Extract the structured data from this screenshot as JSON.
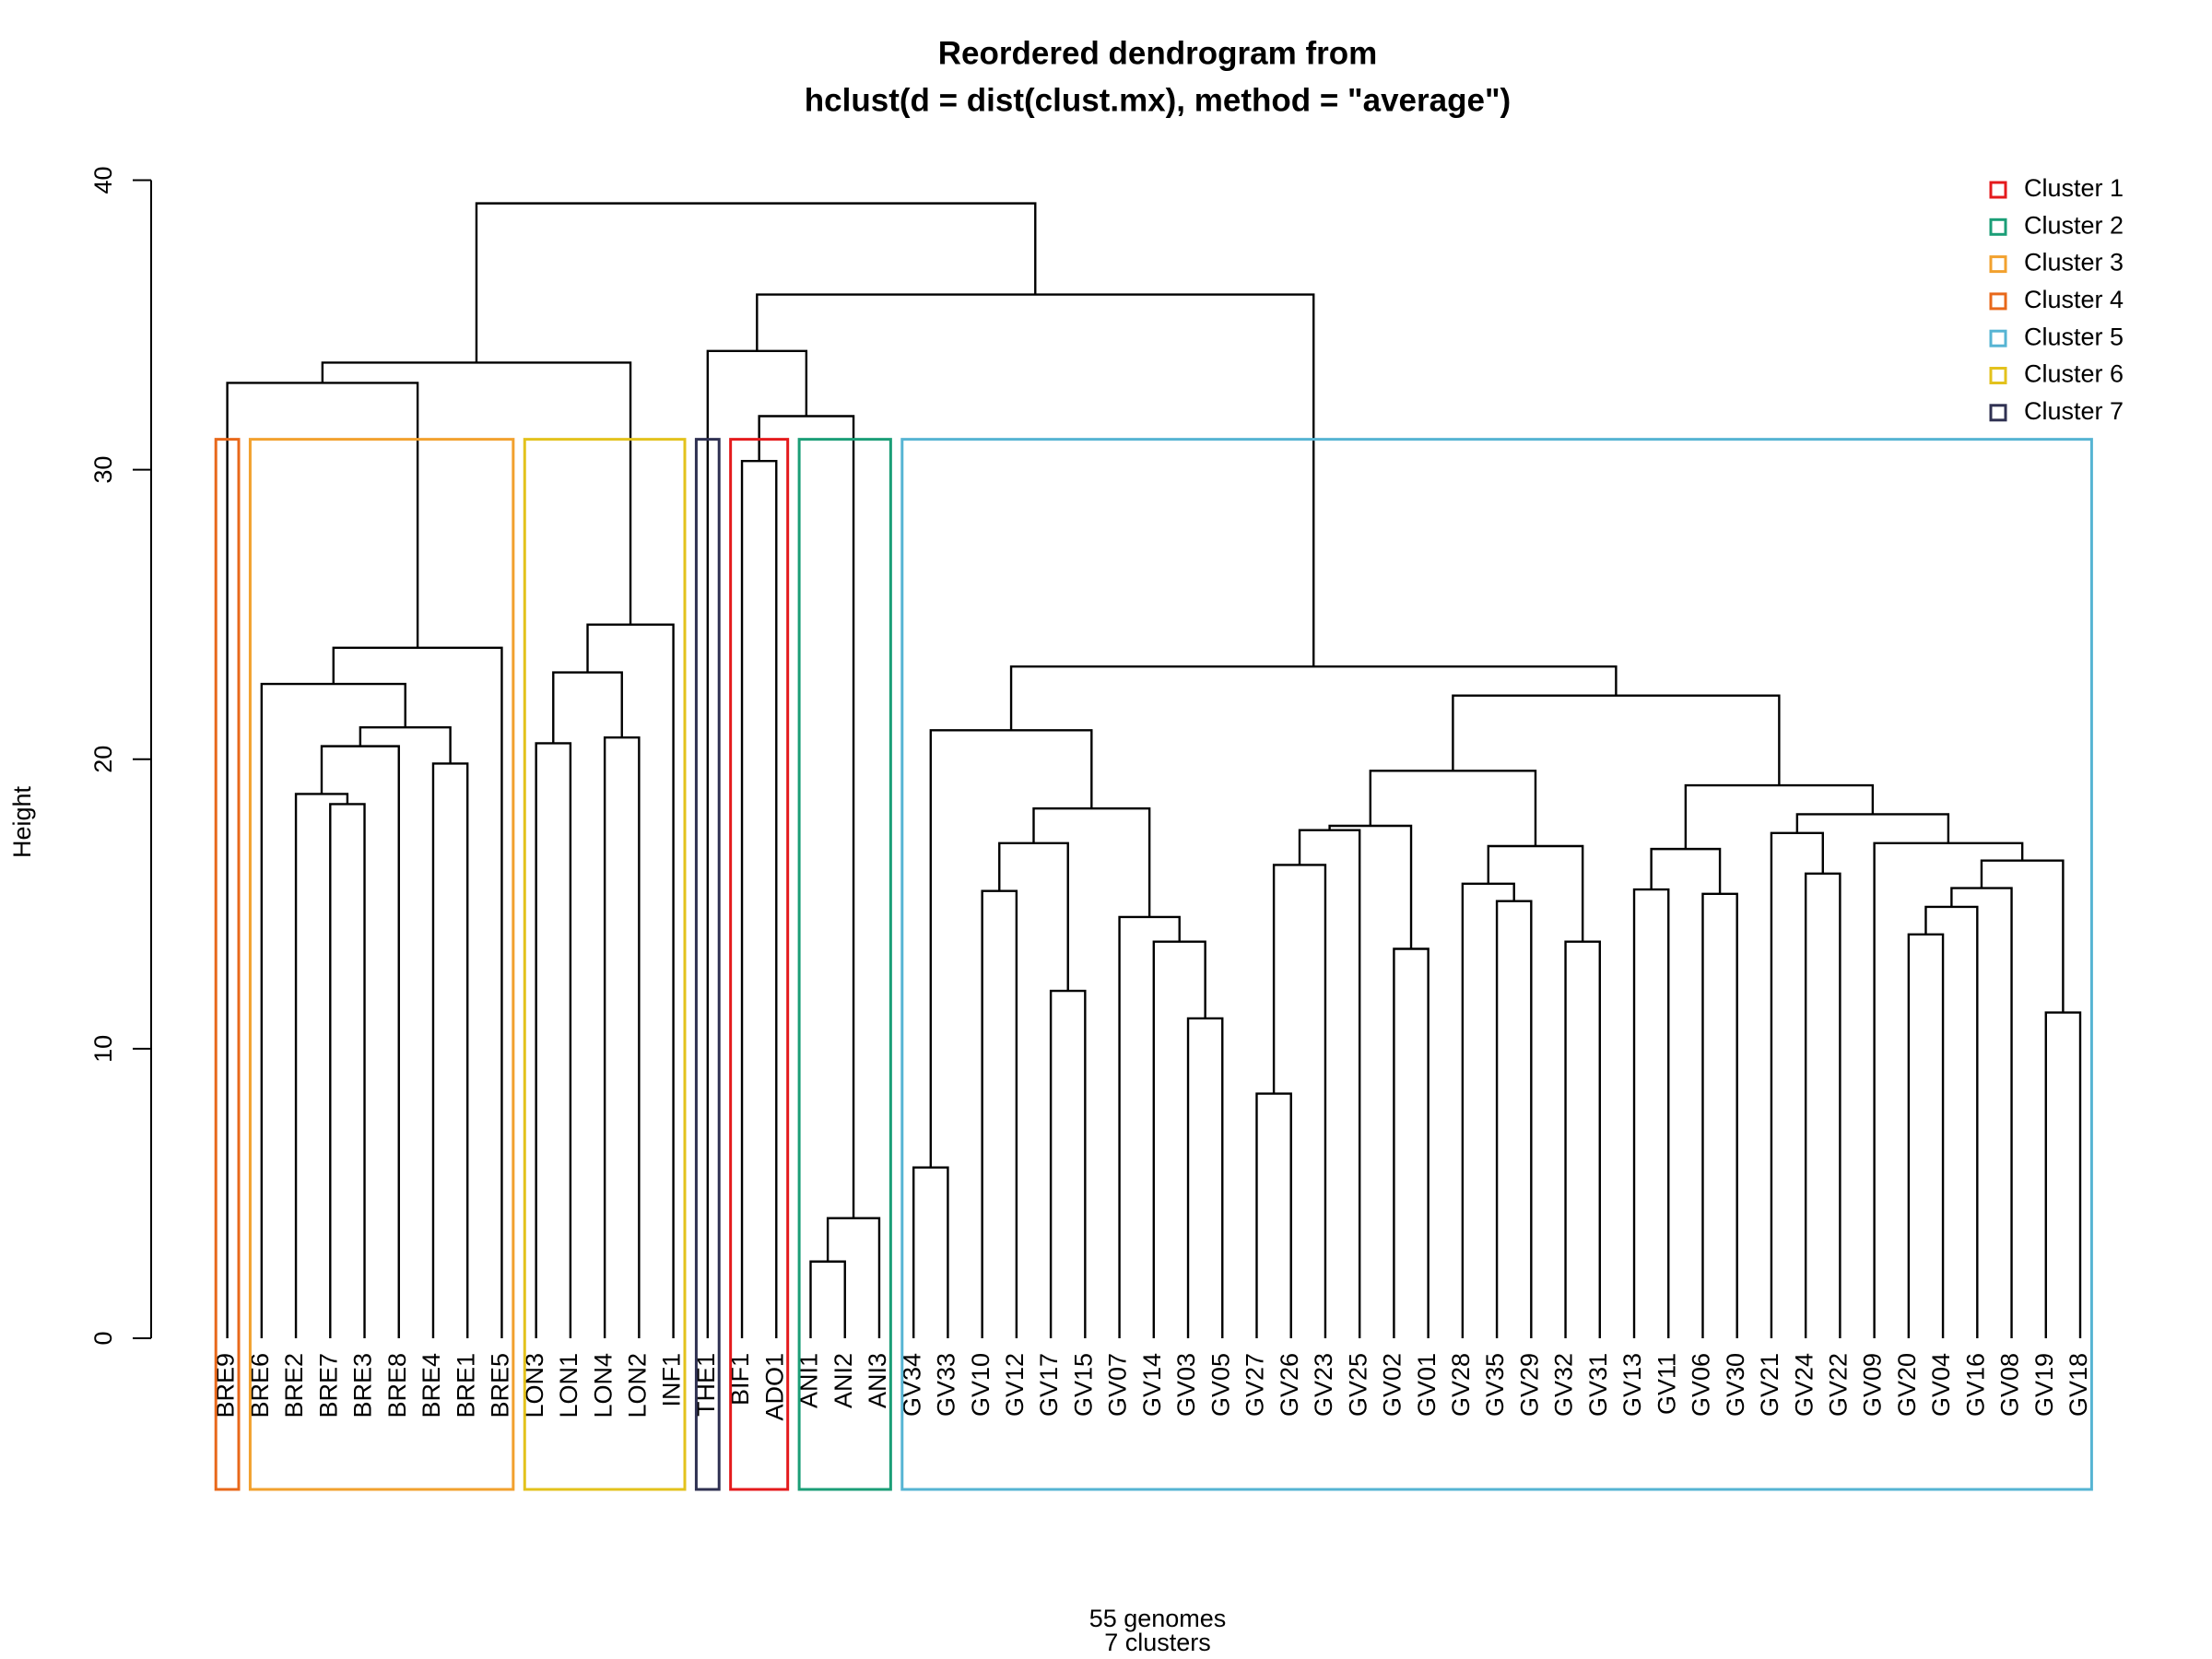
{
  "chart_data": {
    "type": "dendrogram",
    "title": [
      "Reordered dendrogram from",
      "hclust(d = dist(clust.mx), method = \"average\")"
    ],
    "ylabel": "Height",
    "xlabel": [
      "55 genomes",
      "7 clusters"
    ],
    "ylim": [
      0,
      40
    ],
    "yticks": [
      0,
      10,
      20,
      30,
      40
    ],
    "labels": [
      "BRE9",
      "BRE6",
      "BRE2",
      "BRE7",
      "BRE3",
      "BRE8",
      "BRE4",
      "BRE1",
      "BRE5",
      "LON3",
      "LON1",
      "LON4",
      "LON2",
      "INF1",
      "THE1",
      "BIF1",
      "ADO1",
      "ANI1",
      "ANI2",
      "ANI3",
      "GV34",
      "GV33",
      "GV10",
      "GV12",
      "GV17",
      "GV15",
      "GV07",
      "GV14",
      "GV03",
      "GV05",
      "GV27",
      "GV26",
      "GV23",
      "GV25",
      "GV02",
      "GV01",
      "GV28",
      "GV35",
      "GV29",
      "GV32",
      "GV31",
      "GV13",
      "GV11",
      "GV06",
      "GV30",
      "GV21",
      "GV24",
      "GV22",
      "GV09",
      "GV20",
      "GV04",
      "GV16",
      "GV08",
      "GV19",
      "GV18"
    ],
    "tree": {
      "height": 39.2,
      "children": [
        {
          "height": 33.7,
          "children": [
            {
              "height": 33.0,
              "children": [
                0,
                {
                  "height": 23.85,
                  "children": [
                    {
                      "height": 22.6,
                      "children": [
                        1,
                        {
                          "height": 21.1,
                          "children": [
                            {
                              "height": 20.45,
                              "children": [
                                {
                                  "height": 18.8,
                                  "children": [
                                    2,
                                    {
                                      "height": 18.45,
                                      "children": [
                                        3,
                                        4
                                      ]
                                    }
                                  ]
                                },
                                5
                              ]
                            },
                            {
                              "height": 19.85,
                              "children": [
                                6,
                                7
                              ]
                            }
                          ]
                        }
                      ]
                    },
                    8
                  ]
                }
              ]
            },
            {
              "height": 24.65,
              "children": [
                {
                  "height": 23.0,
                  "children": [
                    {
                      "height": 20.55,
                      "children": [
                        9,
                        10
                      ]
                    },
                    {
                      "height": 20.75,
                      "children": [
                        11,
                        12
                      ]
                    }
                  ]
                },
                13
              ]
            }
          ]
        },
        {
          "height": 36.05,
          "children": [
            {
              "height": 34.1,
              "children": [
                14,
                {
                  "height": 31.85,
                  "children": [
                    {
                      "height": 30.3,
                      "children": [
                        15,
                        16
                      ]
                    },
                    {
                      "height": 4.15,
                      "children": [
                        {
                          "height": 2.65,
                          "children": [
                            17,
                            18
                          ]
                        },
                        19
                      ]
                    }
                  ]
                }
              ]
            },
            {
              "height": 23.2,
              "children": [
                {
                  "height": 21.0,
                  "children": [
                    {
                      "height": 5.9,
                      "children": [
                        20,
                        21
                      ]
                    },
                    {
                      "height": 18.3,
                      "children": [
                        {
                          "height": 17.1,
                          "children": [
                            {
                              "height": 15.45,
                              "children": [
                                22,
                                23
                              ]
                            },
                            {
                              "height": 12.0,
                              "children": [
                                24,
                                25
                              ]
                            }
                          ]
                        },
                        {
                          "height": 14.55,
                          "children": [
                            26,
                            {
                              "height": 13.7,
                              "children": [
                                27,
                                {
                                  "height": 11.05,
                                  "children": [
                                    28,
                                    29
                                  ]
                                }
                              ]
                            }
                          ]
                        }
                      ]
                    }
                  ]
                },
                {
                  "height": 22.2,
                  "children": [
                    {
                      "height": 19.6,
                      "children": [
                        {
                          "height": 17.7,
                          "children": [
                            {
                              "height": 17.55,
                              "children": [
                                {
                                  "height": 16.35,
                                  "children": [
                                    {
                                      "height": 8.45,
                                      "children": [
                                        30,
                                        31
                                      ]
                                    },
                                    32
                                  ]
                                },
                                33
                              ]
                            },
                            {
                              "height": 13.45,
                              "children": [
                                34,
                                35
                              ]
                            }
                          ]
                        },
                        {
                          "height": 17.0,
                          "children": [
                            {
                              "height": 15.7,
                              "children": [
                                36,
                                {
                                  "height": 15.1,
                                  "children": [
                                    37,
                                    38
                                  ]
                                }
                              ]
                            },
                            {
                              "height": 13.7,
                              "children": [
                                39,
                                40
                              ]
                            }
                          ]
                        }
                      ]
                    },
                    {
                      "height": 19.1,
                      "children": [
                        {
                          "height": 16.9,
                          "children": [
                            {
                              "height": 15.5,
                              "children": [
                                41,
                                42
                              ]
                            },
                            {
                              "height": 15.35,
                              "children": [
                                43,
                                44
                              ]
                            }
                          ]
                        },
                        {
                          "height": 18.1,
                          "children": [
                            {
                              "height": 17.45,
                              "children": [
                                45,
                                {
                                  "height": 16.05,
                                  "children": [
                                    46,
                                    47
                                  ]
                                }
                              ]
                            },
                            {
                              "height": 17.1,
                              "children": [
                                48,
                                {
                                  "height": 16.5,
                                  "children": [
                                    {
                                      "height": 15.55,
                                      "children": [
                                        {
                                          "height": 14.9,
                                          "children": [
                                            {
                                              "height": 13.95,
                                              "children": [
                                                49,
                                                50
                                              ]
                                            },
                                            51
                                          ]
                                        },
                                        52
                                      ]
                                    },
                                    {
                                      "height": 11.25,
                                      "children": [
                                        53,
                                        54
                                      ]
                                    }
                                  ]
                                }
                              ]
                            }
                          ]
                        }
                      ]
                    }
                  ]
                }
              ]
            }
          ]
        }
      ]
    },
    "cut_height": 31.05,
    "clusters": [
      {
        "name": "Cluster 1",
        "color": "#E41A1C",
        "range": [
          15,
          16
        ]
      },
      {
        "name": "Cluster 2",
        "color": "#1B9E77",
        "range": [
          17,
          19
        ]
      },
      {
        "name": "Cluster 3",
        "color": "#F2A12E",
        "range": [
          1,
          8
        ]
      },
      {
        "name": "Cluster 4",
        "color": "#E8681A",
        "range": [
          0,
          0
        ]
      },
      {
        "name": "Cluster 5",
        "color": "#56B4D3",
        "range": [
          20,
          54
        ]
      },
      {
        "name": "Cluster 6",
        "color": "#E3C21C",
        "range": [
          9,
          13
        ]
      },
      {
        "name": "Cluster 7",
        "color": "#2F3152",
        "range": [
          14,
          14
        ]
      }
    ],
    "legend": "top-right"
  }
}
